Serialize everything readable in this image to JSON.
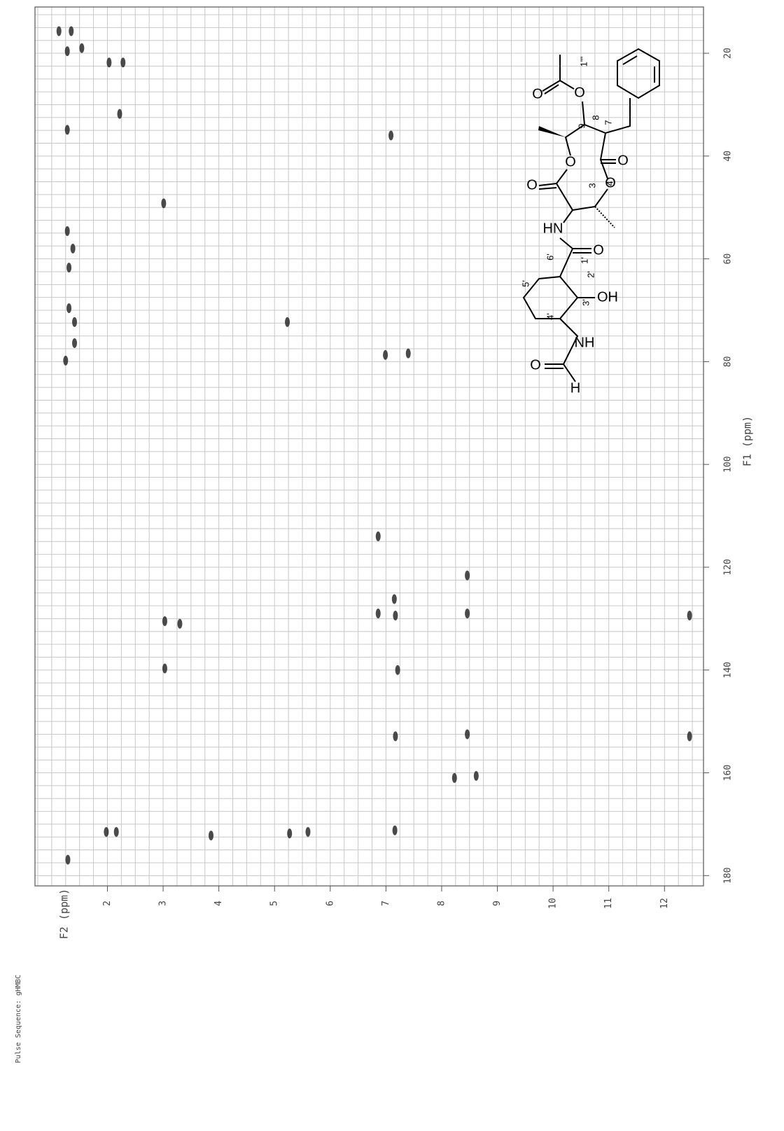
{
  "chart_data": {
    "type": "scatter",
    "pulse_sequence": "Pulse Sequence: gHMBC",
    "xlabel": "F2 (ppm)",
    "ylabel": "F1 (ppm)",
    "x": [
      1.13,
      1.35,
      1.28,
      1.54,
      2.03,
      2.28,
      2.22,
      1.28,
      7.09,
      3.01,
      1.28,
      1.38,
      1.31,
      1.31,
      1.41,
      1.41,
      1.25,
      5.23,
      6.99,
      7.4,
      6.86,
      8.46,
      6.86,
      7.17,
      7.15,
      3.03,
      3.3,
      8.46,
      12.45,
      3.03,
      7.21,
      7.17,
      8.46,
      12.45,
      8.23,
      8.62,
      1.98,
      2.16,
      3.86,
      5.27,
      5.6,
      7.16,
      1.29
    ],
    "values": [
      15.7,
      15.7,
      19.6,
      19.0,
      21.8,
      21.8,
      31.8,
      34.9,
      36.0,
      49.2,
      54.6,
      58.0,
      61.7,
      69.6,
      72.3,
      76.4,
      79.8,
      72.3,
      78.7,
      78.4,
      114.0,
      121.6,
      129.0,
      129.4,
      126.2,
      130.5,
      131.0,
      129.0,
      129.4,
      139.7,
      140.0,
      152.9,
      152.5,
      152.9,
      161.0,
      160.6,
      171.5,
      171.5,
      172.2,
      171.8,
      171.5,
      171.2,
      176.9
    ],
    "color": "#2a2a2a",
    "xlim": [
      0.7,
      12.7
    ],
    "xticks": [
      2,
      3,
      4,
      5,
      6,
      7,
      8,
      9,
      10,
      11,
      12
    ],
    "ylim": [
      11,
      182
    ],
    "yticks": [
      20,
      40,
      60,
      80,
      100,
      120,
      140,
      160,
      180
    ],
    "grid": true,
    "minor_divisions": {
      "x": 4,
      "y": 8
    },
    "structure_labels": [
      "O",
      "O",
      "1'''",
      "9",
      "8",
      "7",
      "O",
      "O",
      "O",
      "3",
      "4",
      "O",
      "HN",
      "O",
      "6'",
      "1'",
      "2'",
      "5'",
      "3'",
      "OH",
      "4'",
      "NH",
      "O",
      "H"
    ]
  }
}
